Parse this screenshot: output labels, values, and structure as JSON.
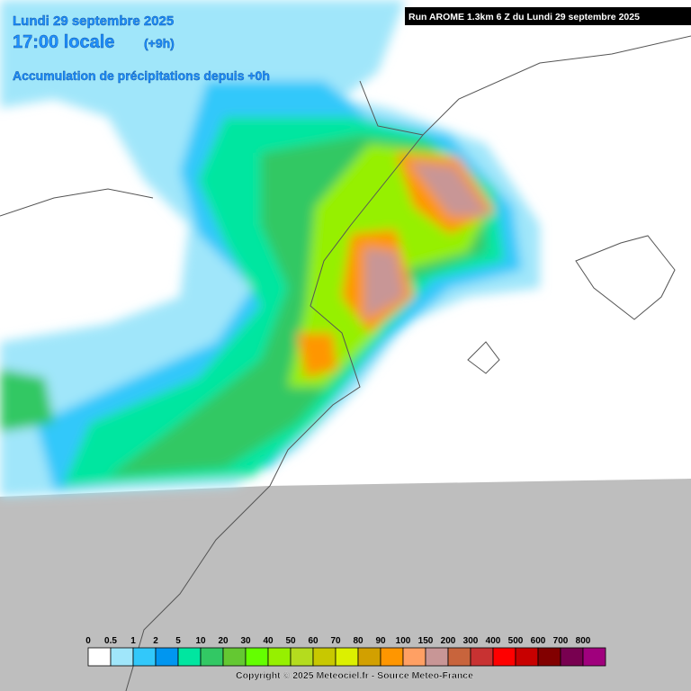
{
  "header": {
    "date": "Lundi 29 septembre 2025",
    "time": "17:00 locale",
    "offset": "(+9h)",
    "subtitle": "Accumulation de précipitations depuis +0h"
  },
  "run": "Run AROME 1.3km 6 Z du Lundi 29 septembre 2025",
  "legend": {
    "items": [
      {
        "label": "0",
        "color": "#ffffff"
      },
      {
        "label": "0.5",
        "color": "#a0e6fa"
      },
      {
        "label": "1",
        "color": "#32c8fa"
      },
      {
        "label": "2",
        "color": "#0096f0"
      },
      {
        "label": "5",
        "color": "#00e6a0"
      },
      {
        "label": "10",
        "color": "#32c864"
      },
      {
        "label": "20",
        "color": "#64c832"
      },
      {
        "label": "30",
        "color": "#64ff00"
      },
      {
        "label": "40",
        "color": "#96f000"
      },
      {
        "label": "50",
        "color": "#b4dc1e"
      },
      {
        "label": "60",
        "color": "#c8c800"
      },
      {
        "label": "70",
        "color": "#dcf000"
      },
      {
        "label": "80",
        "color": "#d2a000"
      },
      {
        "label": "90",
        "color": "#ff9600"
      },
      {
        "label": "100",
        "color": "#ffa064"
      },
      {
        "label": "150",
        "color": "#c89696"
      },
      {
        "label": "200",
        "color": "#c8643c"
      },
      {
        "label": "300",
        "color": "#c83232"
      },
      {
        "label": "400",
        "color": "#ff0000"
      },
      {
        "label": "500",
        "color": "#c80000"
      },
      {
        "label": "600",
        "color": "#820000"
      },
      {
        "label": "700",
        "color": "#780050"
      },
      {
        "label": "800",
        "color": "#a0007d"
      }
    ]
  },
  "footer": "Copyright © 2025 Meteociel.fr - Source Meteo-France"
}
